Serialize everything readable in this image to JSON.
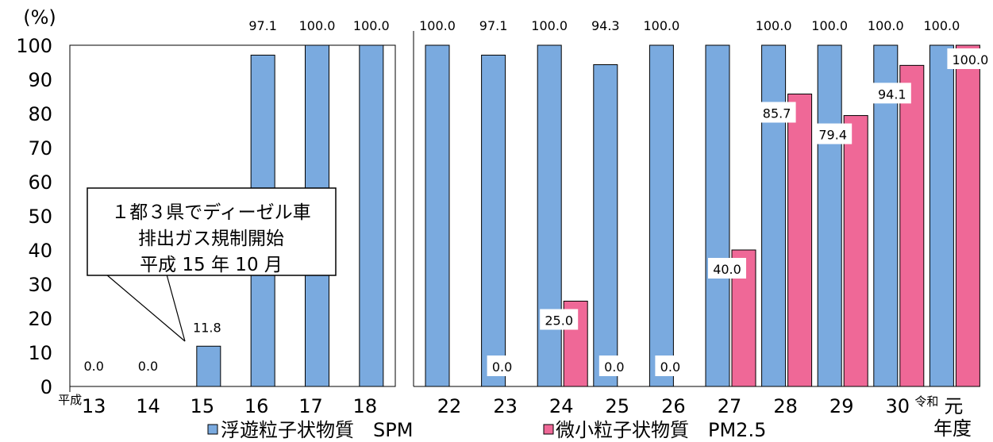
{
  "chart_data": {
    "type": "bar",
    "title": "",
    "ylabel": "(%)",
    "xlabel_unit": "年度",
    "ylim": [
      0,
      100
    ],
    "yticks": [
      "0",
      "10",
      "20",
      "30",
      "40",
      "50",
      "60",
      "70",
      "80",
      "90",
      "100"
    ],
    "categories": [
      "13",
      "14",
      "15",
      "16",
      "17",
      "18",
      "22",
      "23",
      "24",
      "25",
      "26",
      "27",
      "28",
      "29",
      "30",
      "元"
    ],
    "era_prefix": [
      {
        "category": "13",
        "text": "平成"
      },
      {
        "category": "元",
        "text": "令和"
      }
    ],
    "series": [
      {
        "name": "浮遊粒子状物質　SPM",
        "color": "#7aaadf",
        "values": [
          0.0,
          0.0,
          11.8,
          97.1,
          100.0,
          100.0,
          100.0,
          97.1,
          100.0,
          94.3,
          100.0,
          100.0,
          100.0,
          100.0,
          100.0,
          100.0
        ],
        "labels": [
          "0.0",
          "0.0",
          "11.8",
          "97.1",
          "100.0",
          "100.0",
          "100.0",
          "97.1",
          "100.0",
          "94.3",
          "100.0",
          "",
          "100.0",
          "100.0",
          "100.0",
          "100.0"
        ]
      },
      {
        "name": "微小粒子状物質　PM2.5",
        "color": "#ef6897",
        "values": [
          null,
          null,
          null,
          null,
          null,
          null,
          null,
          0.0,
          25.0,
          0.0,
          0.0,
          40.0,
          85.7,
          79.4,
          94.1,
          100.0
        ],
        "labels": [
          "",
          "",
          "",
          "",
          "",
          "",
          "",
          "0.0",
          "25.0",
          "0.0",
          "0.0",
          "40.0",
          "85.7",
          "79.4",
          "94.1",
          "100.0"
        ]
      }
    ],
    "annotation": {
      "lines": [
        "１都３県でディーゼル車",
        "排出ガス規制開始",
        "平成 15 年 10 月"
      ]
    },
    "legend_position": "bottom",
    "grid": false
  }
}
